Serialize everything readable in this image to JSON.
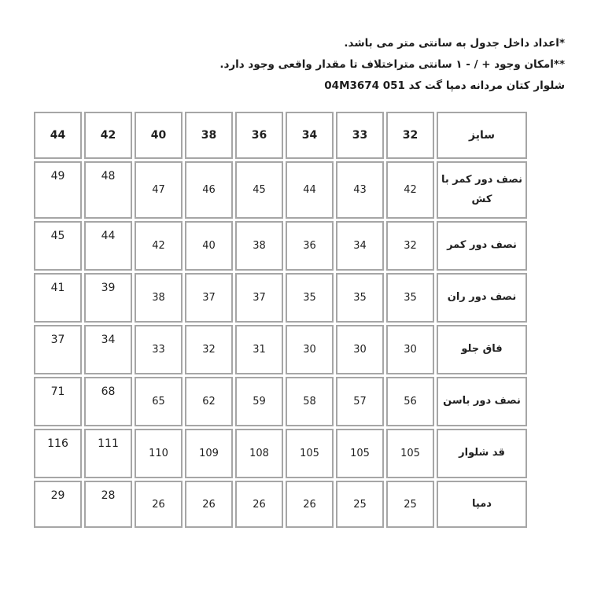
{
  "notes": {
    "line1": "*اعداد داخل جدول به سانتی متر می باشد.",
    "line2": "**امکان وجود + / - ۱ سانتی متراختلاف تا مقدار واقعی وجود دارد.",
    "line3": "شلوار کتان مردانه دمپا گت کد 04M3674 051"
  },
  "table": {
    "size_label": "سایز",
    "header_sizes": [
      "44",
      "42",
      "40",
      "38",
      "36",
      "34",
      "33",
      "32"
    ],
    "rows": [
      {
        "label": "نصف دور کمر با کش",
        "values": [
          "49",
          "48",
          "47",
          "46",
          "45",
          "44",
          "43",
          "42"
        ]
      },
      {
        "label": "نصف دور کمر",
        "values": [
          "45",
          "44",
          "42",
          "40",
          "38",
          "36",
          "34",
          "32"
        ]
      },
      {
        "label": "نصف دور ران",
        "values": [
          "41",
          "39",
          "38",
          "37",
          "37",
          "35",
          "35",
          "35"
        ]
      },
      {
        "label": "فاق جلو",
        "values": [
          "37",
          "34",
          "33",
          "32",
          "31",
          "30",
          "30",
          "30"
        ]
      },
      {
        "label": "نصف دور باسن",
        "values": [
          "71",
          "68",
          "65",
          "62",
          "59",
          "58",
          "57",
          "56"
        ]
      },
      {
        "label": "قد شلوار",
        "values": [
          "116",
          "111",
          "110",
          "109",
          "108",
          "105",
          "105",
          "105"
        ]
      },
      {
        "label": "دمپا",
        "values": [
          "29",
          "28",
          "26",
          "26",
          "26",
          "26",
          "25",
          "25"
        ]
      }
    ],
    "border_color": "#a6a6a6"
  }
}
